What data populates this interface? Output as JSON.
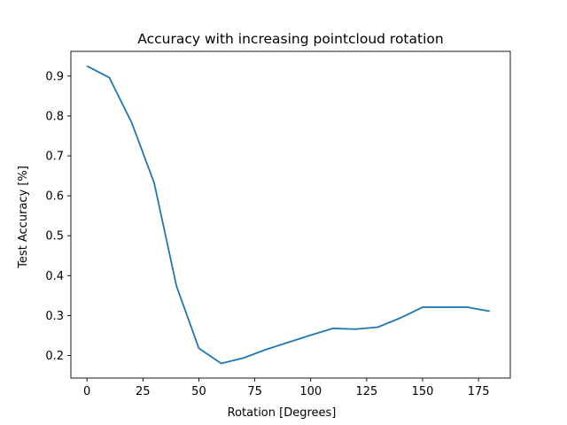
{
  "chart_data": {
    "type": "line",
    "title": "Accuracy with increasing pointcloud rotation",
    "xlabel": "Rotation [Degrees]",
    "ylabel": "Test Accuracy [%]",
    "xlim": [
      -7.2,
      189.2
    ],
    "ylim": [
      0.1435,
      0.9618
    ],
    "xticks": [
      0,
      25,
      50,
      75,
      100,
      125,
      150,
      175
    ],
    "yticks": [
      0.2,
      0.3,
      0.4,
      0.5,
      0.6,
      0.7,
      0.8,
      0.9
    ],
    "grid": false,
    "series": [
      {
        "color": "#1f77b4",
        "x": [
          0,
          10,
          20,
          30,
          40,
          50,
          60,
          70,
          80,
          90,
          100,
          110,
          120,
          130,
          140,
          150,
          160,
          170,
          180
        ],
        "y": [
          0.925,
          0.896,
          0.783,
          0.633,
          0.374,
          0.218,
          0.18,
          0.194,
          0.215,
          0.233,
          0.251,
          0.268,
          0.266,
          0.271,
          0.294,
          0.321,
          0.321,
          0.321,
          0.311
        ]
      }
    ]
  }
}
